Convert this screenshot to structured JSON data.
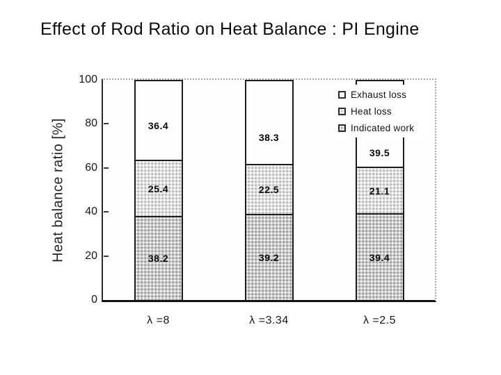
{
  "chart_data": {
    "type": "bar",
    "stacked": true,
    "title": "Effect of Rod Ratio on Heat Balance : PI Engine",
    "ylabel": "Heat balance ratio [%]",
    "xlabel": "",
    "ylim": [
      0,
      100
    ],
    "yticks": [
      0,
      20,
      40,
      60,
      80,
      100
    ],
    "grid": false,
    "categories": [
      "λ =8",
      "λ =3.34",
      "λ =2.5"
    ],
    "stack_order": "first series listed is the top segment",
    "series": [
      {
        "name": "Exhaust loss",
        "values": [
          36.4,
          38.3,
          39.5
        ],
        "fill": "white"
      },
      {
        "name": "Heat loss",
        "values": [
          25.4,
          22.5,
          21.1
        ],
        "fill": "light-gray-dot-pattern"
      },
      {
        "name": "Indicated work",
        "values": [
          38.2,
          39.2,
          39.4
        ],
        "fill": "gray-dot-pattern"
      }
    ],
    "legend": {
      "position": "top-right-inside",
      "entries": [
        "Exhaust loss",
        "Heat loss",
        "Indicated work"
      ]
    }
  },
  "colors": {
    "background": "#ffffff",
    "text": "#141414",
    "axis": "#1c1c1c",
    "dotted_plot_border": "#a3a3a3",
    "exhaust_loss_fill": "#fdfdfd",
    "heat_loss_fill": "#e2e2e2",
    "indicated_work_fill": "#cfcfcf"
  }
}
